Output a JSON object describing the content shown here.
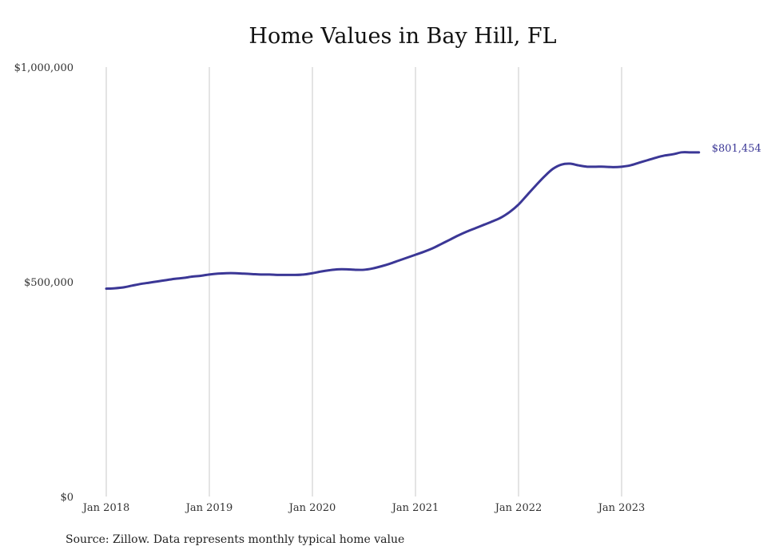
{
  "chart_data": {
    "type": "line",
    "title": "Home Values in Bay Hill, FL",
    "xlabel": "",
    "ylabel": "",
    "ylim": [
      0,
      1000000
    ],
    "y_ticks": [
      "$0",
      "$500,000",
      "$1,000,000"
    ],
    "x_ticks": [
      "Jan 2018",
      "Jan 2019",
      "Jan 2020",
      "Jan 2021",
      "Jan 2022",
      "Jan 2023"
    ],
    "grid": "vertical",
    "colors": {
      "line": "#3b3796",
      "grid": "#c8c8c8"
    },
    "series": [
      {
        "x": [
          "2018-01",
          "2018-02",
          "2018-03",
          "2018-04",
          "2018-05",
          "2018-06",
          "2018-07",
          "2018-08",
          "2018-09",
          "2018-10",
          "2018-11",
          "2018-12",
          "2019-01",
          "2019-02",
          "2019-03",
          "2019-04",
          "2019-05",
          "2019-06",
          "2019-07",
          "2019-08",
          "2019-09",
          "2019-10",
          "2019-11",
          "2019-12",
          "2020-01",
          "2020-02",
          "2020-03",
          "2020-04",
          "2020-05",
          "2020-06",
          "2020-07",
          "2020-08",
          "2020-09",
          "2020-10",
          "2020-11",
          "2020-12",
          "2021-01",
          "2021-02",
          "2021-03",
          "2021-04",
          "2021-05",
          "2021-06",
          "2021-07",
          "2021-08",
          "2021-09",
          "2021-10",
          "2021-11",
          "2021-12",
          "2022-01",
          "2022-02",
          "2022-03",
          "2022-04",
          "2022-05",
          "2022-06",
          "2022-07",
          "2022-08",
          "2022-09",
          "2022-10",
          "2022-11",
          "2022-12",
          "2023-01",
          "2023-02",
          "2023-03",
          "2023-04",
          "2023-05",
          "2023-06",
          "2023-07",
          "2023-08",
          "2023-09",
          "2023-10"
        ],
        "values": [
          484000,
          485000,
          487000,
          491000,
          495000,
          498000,
          501000,
          504000,
          507000,
          509000,
          512000,
          514000,
          517000,
          519000,
          520000,
          520000,
          519000,
          518000,
          517000,
          517000,
          516000,
          516000,
          516000,
          517000,
          520000,
          524000,
          527000,
          529000,
          529000,
          528000,
          528000,
          531000,
          536000,
          542000,
          549000,
          556000,
          563000,
          570000,
          578000,
          588000,
          598000,
          608000,
          617000,
          625000,
          633000,
          641000,
          650000,
          663000,
          680000,
          702000,
          724000,
          745000,
          763000,
          773000,
          775000,
          771000,
          768000,
          768000,
          768000,
          767000,
          768000,
          771000,
          777000,
          783000,
          789000,
          794000,
          797000,
          801454,
          801454,
          801454
        ],
        "end_label": "$801,454"
      }
    ]
  },
  "source": "Source: Zillow. Data represents monthly typical home value"
}
